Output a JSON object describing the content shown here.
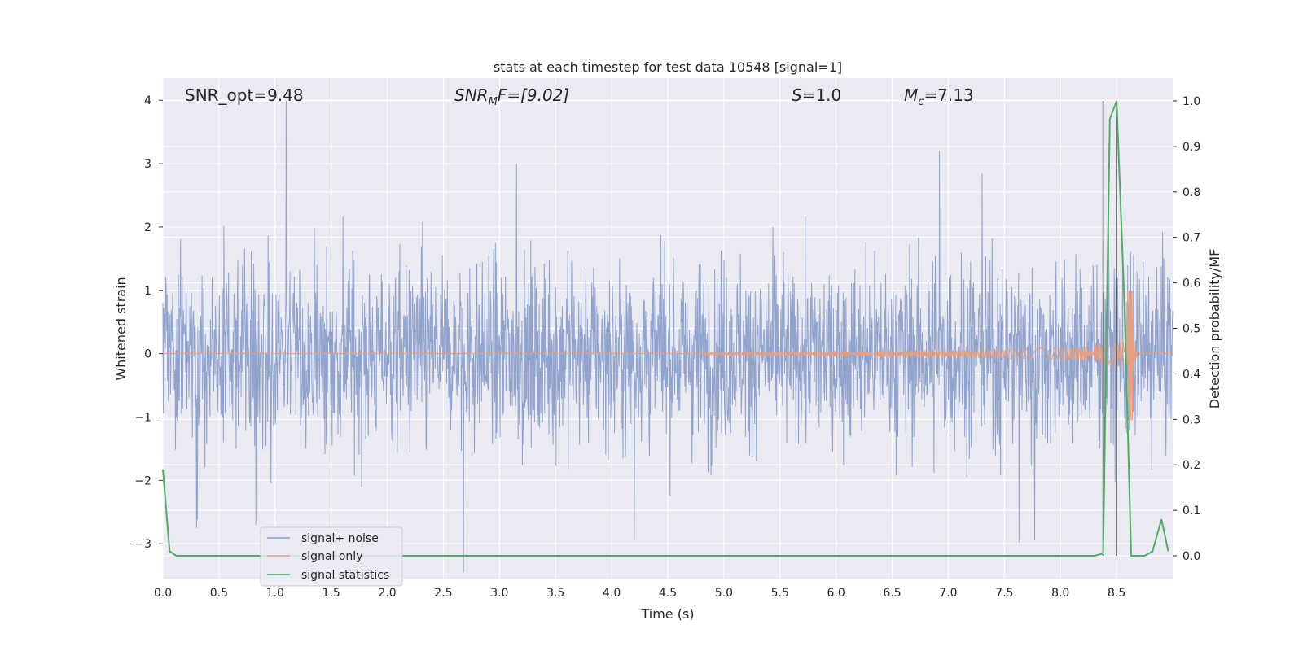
{
  "chart_data": {
    "type": "line",
    "title": "stats at each timestep for test data 10548 [signal=1]",
    "xlabel": "Time (s)",
    "ylabel": "Whitened strain",
    "ylabel_right": "Detection probability/MF",
    "xlim": [
      0.0,
      9.0
    ],
    "ylim": [
      -3.55,
      4.35
    ],
    "ylim_right": [
      -0.05,
      1.05
    ],
    "x_ticks": [
      "0.0",
      "0.5",
      "1.0",
      "1.5",
      "2.0",
      "2.5",
      "3.0",
      "3.5",
      "4.0",
      "4.5",
      "5.0",
      "5.5",
      "6.0",
      "6.5",
      "7.0",
      "7.5",
      "8.0",
      "8.5"
    ],
    "y_ticks": [
      "−3",
      "−2",
      "−1",
      "0",
      "1",
      "2",
      "3",
      "4"
    ],
    "y_ticks_right": [
      "0.0",
      "0.1",
      "0.2",
      "0.3",
      "0.4",
      "0.5",
      "0.6",
      "0.7",
      "0.8",
      "0.9",
      "1.0"
    ],
    "grid": true,
    "legend_position": "lower-left",
    "annotations": {
      "snr_opt": "SNR_opt=9.48",
      "snr_mf_main": "SNR",
      "snr_mf_sub": "M",
      "snr_mf_rest": "F=[9.02]",
      "s_main": "S",
      "s_rest": "=1.0",
      "mc_main": "M",
      "mc_sub": "c",
      "mc_rest": "=7.13"
    },
    "series": [
      {
        "name": "signal+ noise",
        "color": "#8da0cb",
        "description_values": {
          "noise_std": 0.85,
          "noise_max": 4.0,
          "noise_min": -3.5
        },
        "spikes": [
          {
            "x": 1.1,
            "y": 4.0
          },
          {
            "x": 2.68,
            "y": -3.45
          },
          {
            "x": 6.92,
            "y": 3.2
          },
          {
            "x": 3.15,
            "y": 3.0
          },
          {
            "x": 7.3,
            "y": 2.85
          },
          {
            "x": 4.2,
            "y": -2.95
          },
          {
            "x": 7.63,
            "y": -2.98
          },
          {
            "x": 7.77,
            "y": -2.95
          },
          {
            "x": 0.3,
            "y": -2.75
          },
          {
            "x": 0.83,
            "y": -2.7
          }
        ]
      },
      {
        "name": "signal only",
        "color": "#e5a083",
        "chirp": {
          "start": 4.8,
          "merger": 8.65,
          "peak": 1.0,
          "trough": -1.05
        }
      },
      {
        "name": "signal statistics",
        "color": "#55a868",
        "axis": "right",
        "x": [
          0.0,
          0.06,
          0.12,
          0.2,
          1.0,
          2.0,
          3.0,
          4.0,
          5.0,
          6.0,
          7.0,
          8.0,
          8.3,
          8.38,
          8.44,
          8.5,
          8.57,
          8.63,
          8.75,
          8.82,
          8.9,
          8.96
        ],
        "y": [
          0.19,
          0.01,
          0.0,
          0.0,
          0.0,
          0.0,
          0.0,
          0.0,
          0.0,
          0.0,
          0.0,
          0.0,
          0.0,
          0.005,
          0.96,
          1.0,
          0.55,
          0.0,
          0.0,
          0.01,
          0.08,
          0.01
        ]
      }
    ],
    "vertical_lines": [
      {
        "x": 8.38,
        "color": "#333333"
      },
      {
        "x": 8.5,
        "color": "#333333"
      }
    ]
  }
}
